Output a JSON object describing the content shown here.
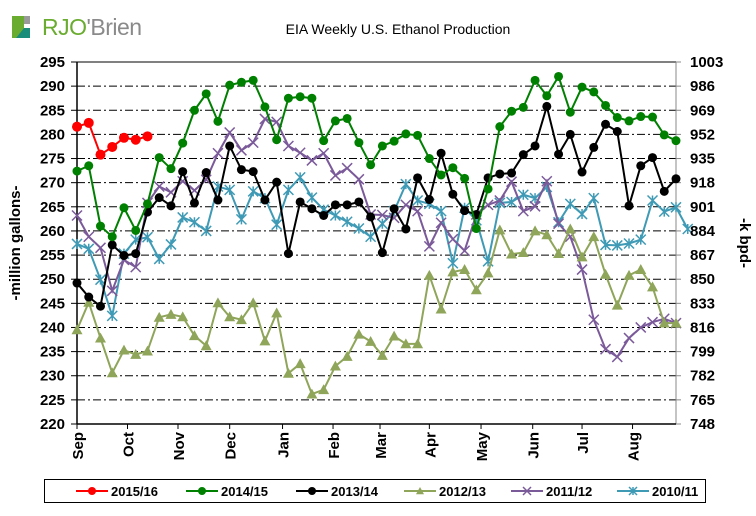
{
  "brand": {
    "rjo": "RJO",
    "apos": "'",
    "brien": "Brien"
  },
  "colors": {
    "logo_green": "#6aac2f",
    "logo_teal": "#1a8c7a",
    "logo_gray": "#9a9a9a"
  },
  "chart_data": {
    "type": "line",
    "title": "EIA Weekly U.S. Ethanol Production",
    "ylabel": "-million gallons-",
    "y2label": "-k bpd-",
    "ylim": [
      220,
      295
    ],
    "yticks": [
      295,
      290,
      285,
      280,
      275,
      270,
      265,
      260,
      255,
      250,
      245,
      240,
      235,
      230,
      225,
      220
    ],
    "y2lim": [
      748,
      1003
    ],
    "y2ticks": [
      1003,
      986,
      969,
      952,
      935,
      918,
      901,
      884,
      867,
      850,
      833,
      816,
      799,
      782,
      765,
      748
    ],
    "x_weeks": 52,
    "x_month_labels": [
      {
        "label": "Sep",
        "week": 0
      },
      {
        "label": "Oct",
        "week": 4.3
      },
      {
        "label": "Nov",
        "week": 8.6
      },
      {
        "label": "Dec",
        "week": 13
      },
      {
        "label": "Jan",
        "week": 17.5
      },
      {
        "label": "Feb",
        "week": 21.8
      },
      {
        "label": "Mar",
        "week": 25.8
      },
      {
        "label": "Apr",
        "week": 30
      },
      {
        "label": "May",
        "week": 34.4
      },
      {
        "label": "Jun",
        "week": 38.8
      },
      {
        "label": "Jul",
        "week": 43
      },
      {
        "label": "Aug",
        "week": 47.3
      }
    ],
    "grid": true,
    "legend_position": "bottom",
    "series": [
      {
        "name": "2015/16",
        "color": "#ff0000",
        "marker": "circle",
        "marker_size": 5,
        "values": [
          281.6,
          282.4,
          275.8,
          277.4,
          279.3,
          278.9,
          279.6
        ]
      },
      {
        "name": "2014/15",
        "color": "#008000",
        "marker": "circle",
        "marker_size": 4.5,
        "values": [
          272.4,
          273.5,
          261.0,
          258.8,
          264.8,
          260.1,
          265.6,
          275.2,
          272.9,
          278.2,
          285.0,
          288.4,
          282.7,
          290.2,
          290.8,
          291.2,
          285.7,
          278.9,
          287.5,
          287.8,
          287.5,
          278.7,
          282.8,
          283.3,
          278.3,
          273.7,
          277.6,
          278.6,
          280.1,
          279.8,
          275.0,
          271.6,
          273.1,
          270.9,
          260.5,
          268.7,
          281.6,
          284.8,
          285.6,
          291.2,
          288.0,
          292.0,
          284.6,
          289.8,
          288.8,
          286.0,
          283.5,
          282.8,
          283.7,
          283.6,
          279.9,
          278.7
        ]
      },
      {
        "name": "2013/14",
        "color": "#000000",
        "marker": "circle",
        "marker_size": 4.5,
        "values": [
          249.2,
          246.3,
          244.4,
          257.1,
          254.9,
          255.3,
          263.9,
          266.9,
          265.2,
          272.3,
          265.8,
          272.1,
          266.4,
          277.6,
          272.7,
          272.3,
          266.4,
          270.1,
          255.3,
          266.0,
          264.6,
          263.2,
          265.4,
          265.4,
          266.0,
          262.9,
          255.5,
          264.6,
          260.4,
          271.0,
          266.5,
          276.1,
          267.6,
          264.2,
          263.4,
          271.0,
          271.8,
          272.0,
          275.8,
          277.6,
          285.8,
          275.9,
          280.0,
          272.2,
          277.3,
          282.1,
          280.6,
          265.2,
          273.5,
          275.2,
          268.2,
          270.8
        ]
      },
      {
        "name": "2012/13",
        "color": "#8fa55a",
        "marker": "triangle",
        "marker_size": 5.5,
        "values": [
          239.5,
          245.2,
          237.8,
          230.6,
          235.3,
          234.4,
          235.1,
          242.1,
          242.7,
          242.2,
          238.3,
          236.2,
          245.1,
          242.2,
          241.6,
          245.1,
          237.2,
          243.0,
          230.5,
          232.5,
          226.2,
          227.1,
          232.0,
          234.0,
          238.6,
          237.1,
          234.2,
          238.2,
          236.6,
          236.6,
          250.8,
          243.8,
          251.5,
          252.0,
          247.8,
          251.3,
          260.2,
          255.2,
          255.5,
          260.0,
          259.2,
          255.3,
          260.4,
          254.6,
          258.8,
          251.0,
          244.6,
          250.8,
          252.0,
          248.4,
          240.9,
          240.9
        ]
      },
      {
        "name": "2011/12",
        "color": "#7b5a9a",
        "marker": "x",
        "marker_size": 5,
        "values": [
          263.2,
          258.8,
          256.5,
          247.6,
          254.0,
          252.5,
          265.8,
          269.2,
          268.0,
          270.3,
          268.4,
          270.6,
          276.1,
          280.4,
          276.7,
          278.3,
          283.2,
          282.6,
          277.6,
          276.2,
          274.6,
          276.1,
          271.5,
          273.0,
          270.7,
          263.4,
          263.3,
          262.7,
          265.4,
          264.1,
          256.8,
          261.7,
          258.3,
          255.9,
          263.4,
          265.4,
          266.3,
          270.2,
          264.1,
          265.1,
          270.3,
          261.5,
          258.8,
          252.0,
          241.6,
          235.5,
          233.9,
          237.8,
          240.0,
          241.1,
          241.8,
          240.9
        ]
      },
      {
        "name": "2010/11",
        "color": "#3f9ab5",
        "marker": "star",
        "marker_size": 5,
        "values": [
          257.3,
          256.3,
          249.9,
          242.4,
          255.3,
          258.2,
          258.7,
          254.2,
          257.2,
          262.8,
          261.8,
          260.0,
          269.2,
          268.5,
          262.4,
          268.2,
          266.8,
          261.3,
          268.5,
          271.1,
          266.9,
          264.4,
          263.2,
          261.9,
          260.5,
          258.8,
          261.5,
          264.1,
          269.7,
          266.3,
          265.6,
          264.1,
          253.3,
          264.8,
          262.2,
          253.7,
          265.8,
          266.0,
          267.5,
          266.8,
          269.1,
          261.8,
          265.6,
          263.5,
          266.8,
          257.1,
          257.0,
          257.4,
          258.2,
          266.3,
          264.0,
          264.9,
          260.4
        ]
      }
    ]
  }
}
